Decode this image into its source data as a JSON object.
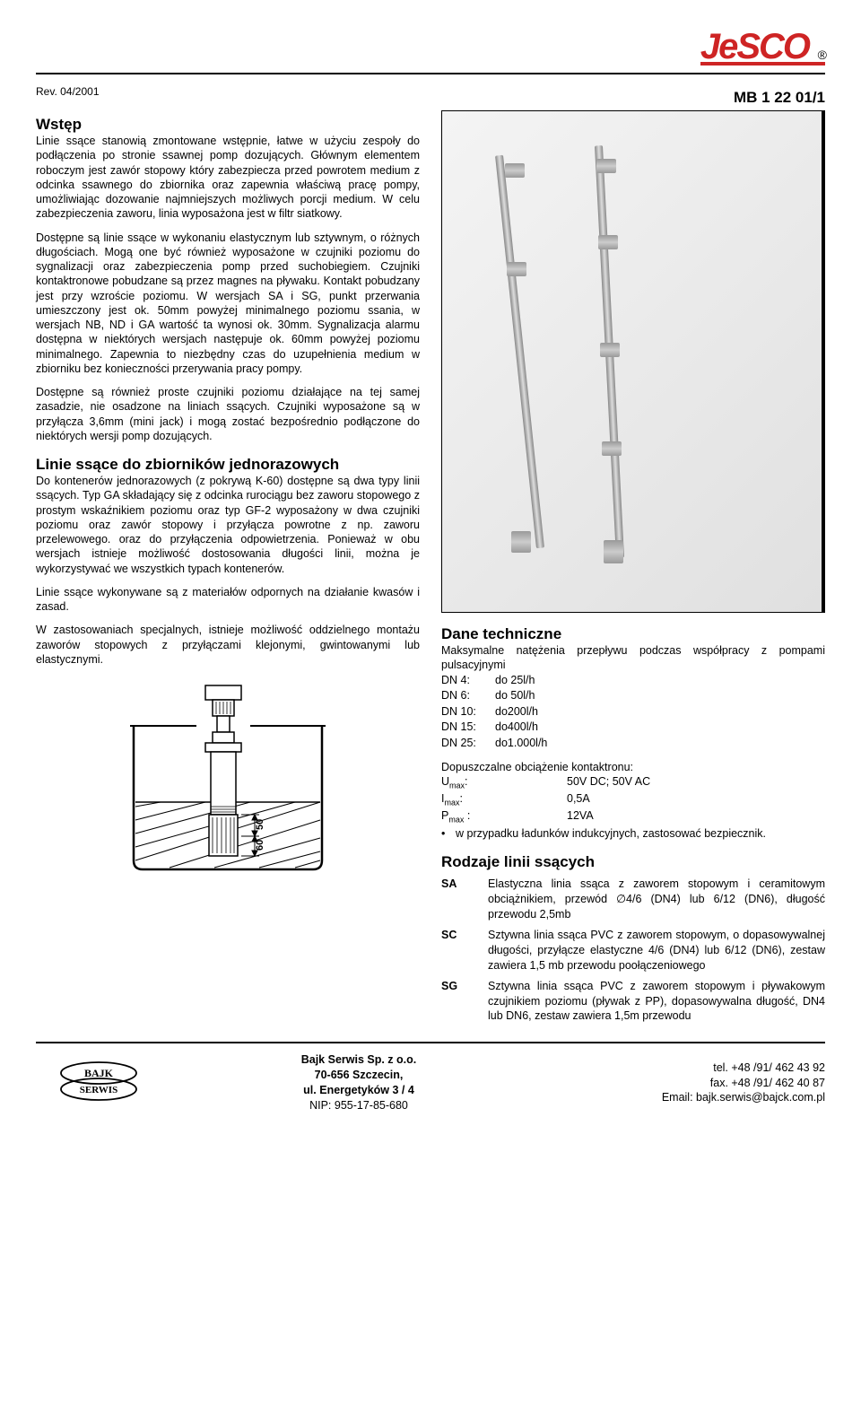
{
  "header": {
    "logo_text": "JeSCO",
    "rev": "Rev. 04/2001",
    "doc_code": "MB 1 22 01/1"
  },
  "left": {
    "h_intro": "Wstęp",
    "p_intro": "Linie ssące stanowią zmontowane wstępnie, łatwe w użyciu zespoły do podłączenia po stronie ssawnej pomp dozujących. Głównym elementem roboczym jest zawór stopowy który zabezpiecza przed powrotem medium z odcinka ssawnego do zbiornika oraz zapewnia właściwą pracę pompy, umożliwiając dozowanie najmniejszych możliwych porcji medium. W celu zabezpieczenia zaworu, linia wyposażona jest w filtr siatkowy.",
    "p2": "Dostępne są linie ssące w wykonaniu elastycznym lub sztywnym, o różnych długościach. Mogą one być również wyposażone w czujniki poziomu do sygnalizacji oraz zabezpieczenia pomp przed suchobiegiem. Czujniki kontaktronowe pobudzane są przez magnes na pływaku. Kontakt pobudzany jest przy wzroście poziomu. W wersjach SA i SG, punkt przerwania umieszczony jest ok. 50mm powyżej minimalnego poziomu ssania, w wersjach NB, ND i GA wartość ta wynosi ok. 30mm. Sygnalizacja alarmu dostępna w niektórych wersjach następuje ok. 60mm powyżej poziomu minimalnego. Zapewnia to niezbędny czas do uzupełnienia medium w zbiorniku bez konieczności przerywania pracy pompy.",
    "p3": "Dostępne są również proste czujniki poziomu działające na tej samej zasadzie, nie osadzone na liniach ssących. Czujniki wyposażone są w przyłącza 3,6mm (mini jack) i mogą zostać bezpośrednio podłączone do niektórych wersji pomp dozujących.",
    "h_single": "Linie ssące do zbiorników jednorazowych",
    "p_single": "Do kontenerów jednorazowych (z pokrywą K-60) dostępne są dwa typy linii ssących. Typ GA składający się z odcinka rurociągu bez zaworu stopowego z prostym wskaźnikiem poziomu oraz typ GF-2 wyposażony w dwa czujniki poziomu oraz zawór stopowy i przyłącza powrotne z np. zaworu przelewowego. oraz do przyłączenia odpowietrzenia. Ponieważ w obu wersjach istnieje możliwość dostosowania długości linii, można je wykorzystywać we wszystkich typach kontenerów.",
    "p_mat": "Linie ssące wykonywane są z materiałów odpornych na działanie kwasów i zasad.",
    "p_special": "W zastosowaniach specjalnych, istnieje możliwość oddzielnego montażu zaworów stopowych z przyłączami klejonymi, gwintowanymi lub elastycznymi."
  },
  "right": {
    "h_tech": "Dane techniczne",
    "p_flow": "Maksymalne natężenia przepływu podczas współpracy z pompami pulsacyjnymi",
    "flow": [
      {
        "dn": "DN  4:",
        "val": "do 25l/h"
      },
      {
        "dn": "DN  6:",
        "val": "do 50l/h"
      },
      {
        "dn": "DN 10:",
        "val": "do200l/h"
      },
      {
        "dn": "DN 15:",
        "val": "do400l/h"
      },
      {
        "dn": "DN 25:",
        "val": "do1.000l/h"
      }
    ],
    "p_load": "Dopuszczalne obciążenie kontaktronu:",
    "load": [
      {
        "k": "Umax:",
        "v": "50V DC; 50V AC"
      },
      {
        "k": "Imax:",
        "v": "0,5A"
      },
      {
        "k": "Pmax :",
        "v": "12VA"
      }
    ],
    "bullet_text": "w przypadku ładunków indukcyjnych, zastosować bezpiecznik.",
    "h_types": "Rodzaje linii ssących",
    "types": [
      {
        "k": "SA",
        "d": "Elastyczna linia ssąca z zaworem stopowym i ceramitowym obciążnikiem, przewód ∅4/6 (DN4) lub 6/12 (DN6), długość przewodu 2,5mb"
      },
      {
        "k": "SC",
        "d": "Sztywna linia ssąca PVC z zaworem stopowym, o dopasowywalnej długości, przyłącze elastyczne 4/6 (DN4) lub 6/12 (DN6), zestaw zawiera 1,5 mb przewodu poołączeniowego"
      },
      {
        "k": "SG",
        "d": "Sztywna linia ssąca PVC z zaworem stopowym i pływakowym czujnikiem poziomu (pływak z PP), dopasowywalna długość, DN4 lub DN6, zestaw zawiera 1,5m przewodu"
      }
    ]
  },
  "diagram": {
    "dim_50": "50",
    "dim_60": "60"
  },
  "footer": {
    "logo_l1": "BAJK",
    "logo_l2": "SERWIS",
    "mid_l1": "Bajk Serwis Sp. z o.o.",
    "mid_l2": "70-656 Szczecin,",
    "mid_l3": "ul. Energetyków 3 / 4",
    "mid_l4": "NIP: 955-17-85-680",
    "r_l1": "tel.  +48 /91/ 462 43 92",
    "r_l2": "fax. +48 /91/ 462 40 87",
    "r_l3": "Email: bajk.serwis@bajck.com.pl"
  }
}
